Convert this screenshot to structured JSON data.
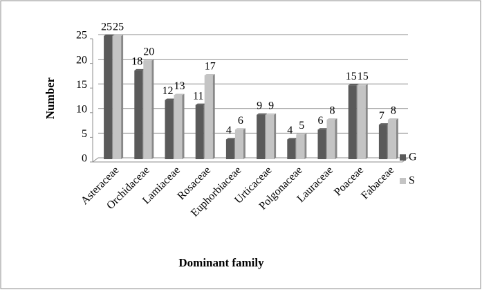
{
  "chart_data": {
    "type": "bar",
    "x_label": "Dominant family",
    "y_label": "Number",
    "categories": [
      "Asteraceae",
      "Orchidaceae",
      "Lamiaceae",
      "Rosaceae",
      "Euphorbiaceae",
      "Urticaceae",
      "Polgonaceae",
      "Lauraceae",
      "Poaceae",
      "Fabaceae"
    ],
    "series": [
      {
        "name": "G",
        "color": "#5a5a5a",
        "values": [
          25,
          18,
          12,
          11,
          4,
          9,
          4,
          6,
          15,
          7
        ]
      },
      {
        "name": "S",
        "color": "#c4c4c4",
        "values": [
          25,
          20,
          13,
          17,
          6,
          9,
          5,
          8,
          15,
          8
        ]
      }
    ],
    "ylim": [
      0,
      25
    ],
    "yticks": [
      0,
      5,
      10,
      15,
      20,
      25
    ],
    "grid": true,
    "legend": "right"
  }
}
